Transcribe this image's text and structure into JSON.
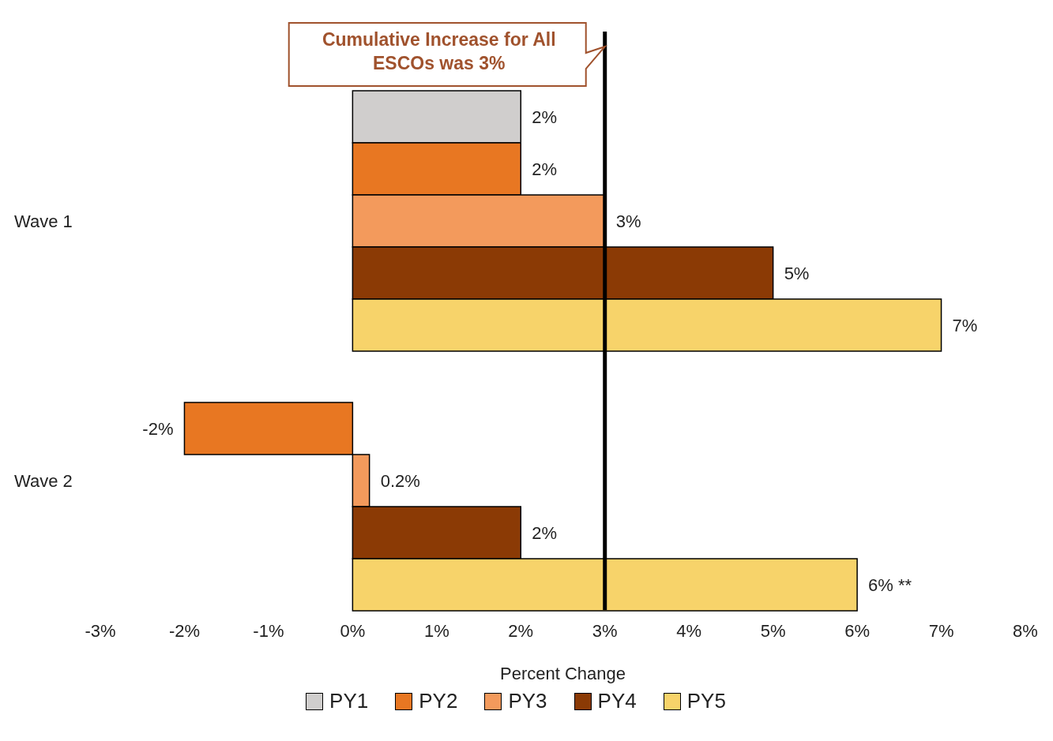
{
  "chart_data": {
    "type": "bar",
    "orientation": "horizontal",
    "xlabel": "Percent Change",
    "categories": [
      "Wave 1",
      "Wave 2"
    ],
    "series": [
      {
        "name": "PY1",
        "color": "#d0cecd",
        "values": [
          2,
          null
        ],
        "value_labels": [
          "2%",
          null
        ]
      },
      {
        "name": "PY2",
        "color": "#e87722",
        "values": [
          2,
          -2
        ],
        "value_labels": [
          "2%",
          "-2%"
        ]
      },
      {
        "name": "PY3",
        "color": "#f39a5c",
        "values": [
          3,
          0.2
        ],
        "value_labels": [
          "3%",
          "0.2%"
        ]
      },
      {
        "name": "PY4",
        "color": "#8b3a05",
        "values": [
          5,
          2
        ],
        "value_labels": [
          "5%",
          "2%"
        ]
      },
      {
        "name": "PY5",
        "color": "#f7d36a",
        "values": [
          7,
          6
        ],
        "value_labels": [
          "7%",
          "6% **"
        ]
      }
    ],
    "xlim": [
      -3,
      8
    ],
    "xticks": [
      {
        "value": -3,
        "label": "-3%"
      },
      {
        "value": -2,
        "label": "-2%"
      },
      {
        "value": -1,
        "label": "-1%"
      },
      {
        "value": 0,
        "label": "0%"
      },
      {
        "value": 1,
        "label": "1%"
      },
      {
        "value": 2,
        "label": "2%"
      },
      {
        "value": 3,
        "label": "3%"
      },
      {
        "value": 4,
        "label": "4%"
      },
      {
        "value": 5,
        "label": "5%"
      },
      {
        "value": 6,
        "label": "6%"
      },
      {
        "value": 7,
        "label": "7%"
      },
      {
        "value": 8,
        "label": "8%"
      }
    ],
    "ref_lines": [
      {
        "axis": "x",
        "value": 3,
        "label": "Cumulative Increase for All ESCOs was 3%",
        "color": "#000000"
      }
    ],
    "grid": false,
    "legend": "bottom"
  }
}
